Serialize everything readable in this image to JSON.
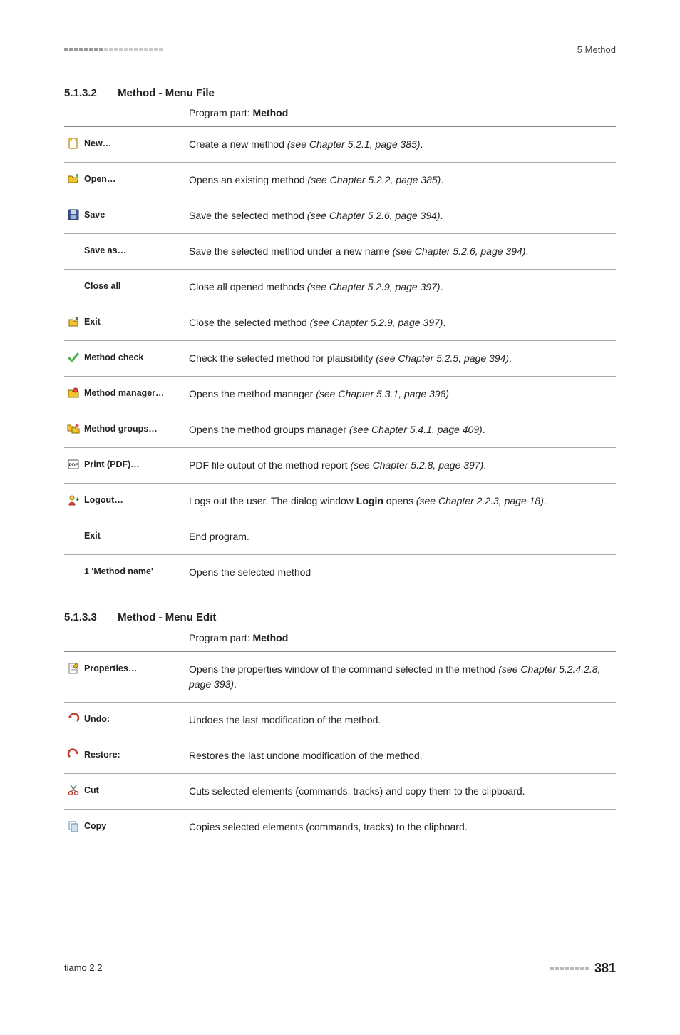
{
  "header": {
    "right": "5 Method"
  },
  "sections": [
    {
      "num": "5.1.3.2",
      "title": "Method - Menu File",
      "program_part_prefix": "Program part: ",
      "program_part_value": "Method",
      "rows": [
        {
          "icon": "new",
          "label": "New…",
          "desc_plain": "Create a new method ",
          "desc_ref": "(see Chapter 5.2.1, page 385)",
          "desc_suffix": "."
        },
        {
          "icon": "open",
          "label": "Open…",
          "desc_plain": "Opens an existing method ",
          "desc_ref": "(see Chapter 5.2.2, page 385)",
          "desc_suffix": "."
        },
        {
          "icon": "save",
          "label": "Save",
          "desc_plain": "Save the selected method ",
          "desc_ref": "(see Chapter 5.2.6, page 394)",
          "desc_suffix": "."
        },
        {
          "icon": null,
          "label": "Save as…",
          "indent": true,
          "desc_plain": "Save the selected method under a new name ",
          "desc_ref": "(see Chapter 5.2.6, page 394)",
          "desc_suffix": "."
        },
        {
          "icon": null,
          "label": "Close all",
          "indent": true,
          "desc_plain": "Close all opened methods ",
          "desc_ref": "(see Chapter 5.2.9, page 397)",
          "desc_suffix": "."
        },
        {
          "icon": "close",
          "label": "Exit",
          "desc_plain": "Close the selected method ",
          "desc_ref": "(see Chapter 5.2.9, page 397)",
          "desc_suffix": "."
        },
        {
          "icon": "check",
          "label": "Method check",
          "desc_plain": "Check the selected method for plausibility ",
          "desc_ref": "(see Chapter 5.2.5, page 394)",
          "desc_suffix": "."
        },
        {
          "icon": "manager",
          "label": "Method manager…",
          "desc_plain": "Opens the method manager ",
          "desc_ref": "(see Chapter 5.3.1, page 398)",
          "desc_suffix": ""
        },
        {
          "icon": "groups",
          "label": "Method groups…",
          "desc_plain": "Opens the method groups manager ",
          "desc_ref": "(see Chapter 5.4.1, page 409)",
          "desc_suffix": "."
        },
        {
          "icon": "pdf",
          "label": "Print (PDF)…",
          "desc_plain": "PDF file output of the method report ",
          "desc_ref": "(see Chapter 5.2.8, page 397)",
          "desc_suffix": "."
        },
        {
          "icon": "logout",
          "label": "Logout…",
          "desc_plain": "Logs out the user. The dialog window ",
          "desc_bold": "Login",
          "desc_mid": " opens ",
          "desc_ref": "(see Chapter 2.2.3, page 18)",
          "desc_suffix": "."
        },
        {
          "icon": null,
          "label": "Exit",
          "indent": true,
          "desc_plain": "End program.",
          "desc_ref": "",
          "desc_suffix": ""
        },
        {
          "icon": null,
          "label": "1 'Method name'",
          "indent": true,
          "desc_plain": "Opens the selected method",
          "desc_ref": "",
          "desc_suffix": "",
          "last": true
        }
      ]
    },
    {
      "num": "5.1.3.3",
      "title": "Method - Menu Edit",
      "program_part_prefix": "Program part: ",
      "program_part_value": "Method",
      "rows": [
        {
          "icon": "properties",
          "label": "Properties…",
          "desc_plain": "Opens the properties window of the command selected in the method ",
          "desc_ref": "(see Chapter 5.2.4.2.8, page 393)",
          "desc_suffix": "."
        },
        {
          "icon": "undo",
          "label": "Undo:",
          "desc_plain": "Undoes the last modification of the method.",
          "desc_ref": "",
          "desc_suffix": ""
        },
        {
          "icon": "restore",
          "label": "Restore:",
          "desc_plain": "Restores the last undone modification of the method.",
          "desc_ref": "",
          "desc_suffix": ""
        },
        {
          "icon": "cut",
          "label": "Cut",
          "desc_plain": "Cuts selected elements (commands, tracks) and copy them to the clipboard.",
          "desc_ref": "",
          "desc_suffix": ""
        },
        {
          "icon": "copy",
          "label": "Copy",
          "desc_plain": "Copies selected elements (commands, tracks) to the clipboard.",
          "desc_ref": "",
          "desc_suffix": "",
          "last": true
        }
      ]
    }
  ],
  "footer": {
    "left": "tiamo 2.2",
    "page": "381"
  }
}
